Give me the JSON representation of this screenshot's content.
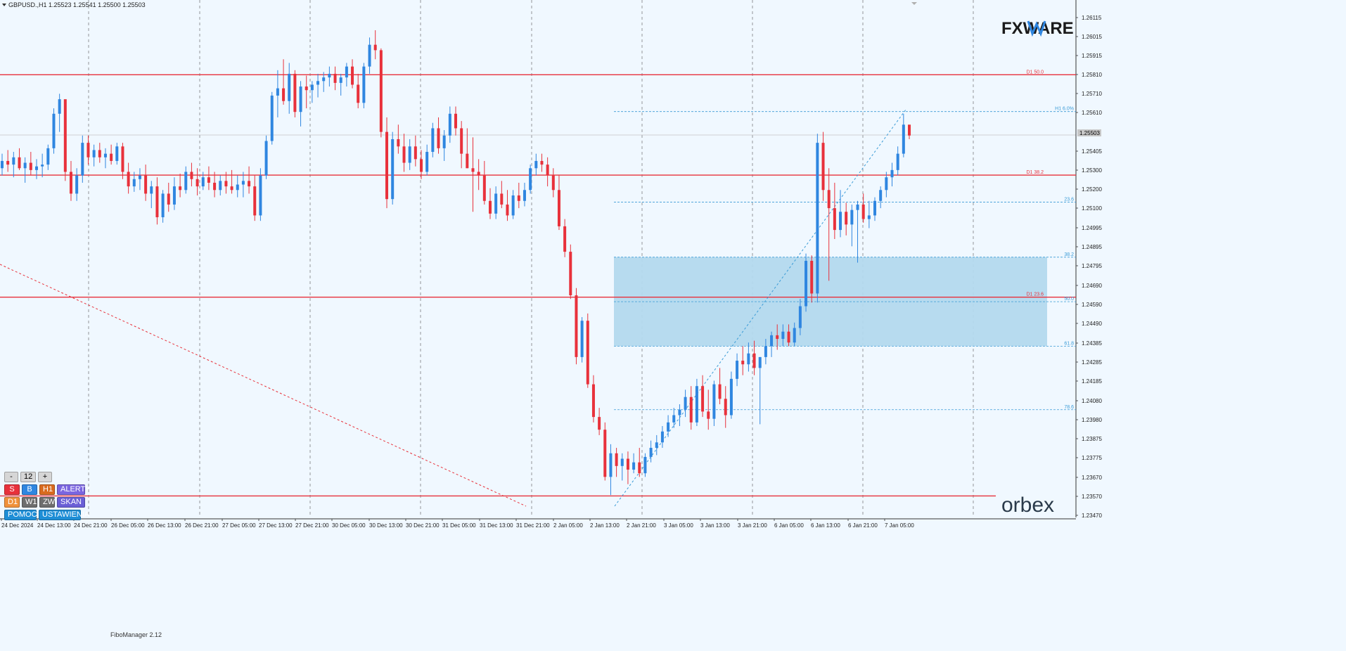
{
  "header": {
    "symbol_line": "GBPUSD.,H1  1.25523 1.25541 1.25500 1.25503"
  },
  "brand": {
    "logo_text": "FXWARE",
    "footer_logo": "orbex"
  },
  "indicator": {
    "name": "FiboManager 2.12"
  },
  "controls": {
    "minus": "-",
    "period": "12",
    "plus": "+",
    "row1": [
      "S",
      "B",
      "H1",
      "ALERTY"
    ],
    "row2": [
      "D1",
      "W1",
      "ZW",
      "SKAN"
    ],
    "row3": [
      "POMOC",
      "USTAWIENIA"
    ]
  },
  "current_price": "1.25503",
  "colors": {
    "bull": "#2f86e0",
    "bear": "#e8313b",
    "zone": "#b3d9ee",
    "level": "#e8313b",
    "fibo": "#3a9bd6"
  },
  "chart_data": {
    "type": "candlestick",
    "symbol": "GBPUSD.",
    "timeframe": "H1",
    "ylim": [
      1.2342,
      1.262
    ],
    "y_ticks": [
      "1.26115",
      "1.26015",
      "1.25915",
      "1.25810",
      "1.25710",
      "1.25610",
      "1.25405",
      "1.25300",
      "1.25200",
      "1.25100",
      "1.24995",
      "1.24895",
      "1.24795",
      "1.24690",
      "1.24590",
      "1.24490",
      "1.24385",
      "1.24285",
      "1.24185",
      "1.24080",
      "1.23980",
      "1.23875",
      "1.23775",
      "1.23670",
      "1.23570",
      "1.23470"
    ],
    "x_labels": [
      "24 Dec 2024",
      "24 Dec 13:00",
      "24 Dec 21:00",
      "26 Dec 05:00",
      "26 Dec 13:00",
      "26 Dec 21:00",
      "27 Dec 05:00",
      "27 Dec 13:00",
      "27 Dec 21:00",
      "30 Dec 05:00",
      "30 Dec 13:00",
      "30 Dec 21:00",
      "31 Dec 05:00",
      "31 Dec 13:00",
      "31 Dec 21:00",
      "2 Jan 05:00",
      "2 Jan 13:00",
      "2 Jan 21:00",
      "3 Jan 05:00",
      "3 Jan 13:00",
      "3 Jan 21:00",
      "6 Jan 05:00",
      "6 Jan 13:00",
      "6 Jan 21:00",
      "7 Jan 05:00"
    ],
    "horizontal_levels": [
      {
        "label": "D1 50.0",
        "price": 1.25835
      },
      {
        "label": "D1 38.2",
        "price": 1.25282
      },
      {
        "label": "D1 23.6",
        "price": 1.2461
      },
      {
        "label": "",
        "price": 1.23515
      }
    ],
    "fibo_levels": [
      {
        "label": "H1 6.0%",
        "price": 1.25632
      },
      {
        "label": "23.6",
        "price": 1.25133
      },
      {
        "label": "38.2",
        "price": 1.2483
      },
      {
        "label": "50.0",
        "price": 1.24585
      },
      {
        "label": "61.8",
        "price": 1.2434
      },
      {
        "label": "78.6",
        "price": 1.2399
      }
    ],
    "zone": {
      "price_top": 1.2483,
      "price_bottom": 1.2434
    },
    "candles": [
      [
        1.2532,
        1.254,
        1.2528,
        1.2536
      ],
      [
        1.2536,
        1.2542,
        1.253,
        1.2534
      ],
      [
        1.2534,
        1.2541,
        1.2527,
        1.2538
      ],
      [
        1.2538,
        1.2543,
        1.2531,
        1.2532
      ],
      [
        1.2532,
        1.2538,
        1.2524,
        1.2535
      ],
      [
        1.2535,
        1.2541,
        1.2528,
        1.2531
      ],
      [
        1.2531,
        1.2537,
        1.2526,
        1.2533
      ],
      [
        1.2533,
        1.254,
        1.2527,
        1.2534
      ],
      [
        1.2534,
        1.2545,
        1.2531,
        1.2543
      ],
      [
        1.2543,
        1.2565,
        1.254,
        1.2562
      ],
      [
        1.2562,
        1.2573,
        1.2552,
        1.257
      ],
      [
        1.257,
        1.2568,
        1.2525,
        1.253
      ],
      [
        1.253,
        1.2536,
        1.2514,
        1.2518
      ],
      [
        1.2518,
        1.2532,
        1.2514,
        1.2528
      ],
      [
        1.2528,
        1.255,
        1.2524,
        1.2546
      ],
      [
        1.2546,
        1.255,
        1.2534,
        1.2538
      ],
      [
        1.2538,
        1.2545,
        1.2533,
        1.2542
      ],
      [
        1.2542,
        1.2546,
        1.2535,
        1.2538
      ],
      [
        1.2538,
        1.2543,
        1.2532,
        1.254
      ],
      [
        1.254,
        1.2545,
        1.2534,
        1.2536
      ],
      [
        1.2536,
        1.2546,
        1.2534,
        1.2544
      ],
      [
        1.2544,
        1.2546,
        1.2526,
        1.253
      ],
      [
        1.253,
        1.2535,
        1.2518,
        1.2522
      ],
      [
        1.2522,
        1.253,
        1.2519,
        1.2526
      ],
      [
        1.2526,
        1.2532,
        1.252,
        1.2528
      ],
      [
        1.2528,
        1.2534,
        1.2514,
        1.2518
      ],
      [
        1.2518,
        1.2525,
        1.251,
        1.2522
      ],
      [
        1.2522,
        1.2527,
        1.2501,
        1.2505
      ],
      [
        1.2505,
        1.252,
        1.2502,
        1.2518
      ],
      [
        1.2518,
        1.2524,
        1.2508,
        1.2512
      ],
      [
        1.2512,
        1.2527,
        1.2509,
        1.2522
      ],
      [
        1.2522,
        1.2529,
        1.2516,
        1.252
      ],
      [
        1.252,
        1.2533,
        1.2518,
        1.253
      ],
      [
        1.253,
        1.2535,
        1.2522,
        1.2526
      ],
      [
        1.2526,
        1.2532,
        1.2517,
        1.2522
      ],
      [
        1.2522,
        1.253,
        1.252,
        1.2527
      ],
      [
        1.2527,
        1.2533,
        1.252,
        1.2524
      ],
      [
        1.2524,
        1.253,
        1.2516,
        1.252
      ],
      [
        1.252,
        1.2528,
        1.2517,
        1.2525
      ],
      [
        1.2525,
        1.253,
        1.2518,
        1.2522
      ],
      [
        1.2522,
        1.2531,
        1.2518,
        1.252
      ],
      [
        1.252,
        1.2528,
        1.2516,
        1.2523
      ],
      [
        1.2523,
        1.253,
        1.2516,
        1.2525
      ],
      [
        1.2525,
        1.2533,
        1.2518,
        1.2522
      ],
      [
        1.2522,
        1.2528,
        1.2503,
        1.2506
      ],
      [
        1.2506,
        1.2532,
        1.2503,
        1.2528
      ],
      [
        1.2528,
        1.255,
        1.2526,
        1.2547
      ],
      [
        1.2547,
        1.2574,
        1.2545,
        1.2572
      ],
      [
        1.2572,
        1.2586,
        1.256,
        1.2576
      ],
      [
        1.2576,
        1.2592,
        1.2567,
        1.2569
      ],
      [
        1.2569,
        1.259,
        1.2562,
        1.2584
      ],
      [
        1.2584,
        1.2586,
        1.256,
        1.2563
      ],
      [
        1.2563,
        1.258,
        1.2555,
        1.2577
      ],
      [
        1.2577,
        1.2583,
        1.2565,
        1.2575
      ],
      [
        1.2575,
        1.258,
        1.2568,
        1.2578
      ],
      [
        1.2578,
        1.2584,
        1.2571,
        1.258
      ],
      [
        1.258,
        1.2585,
        1.2574,
        1.2582
      ],
      [
        1.2582,
        1.2588,
        1.2577,
        1.2584
      ],
      [
        1.2584,
        1.2588,
        1.2575,
        1.2579
      ],
      [
        1.2579,
        1.2584,
        1.2572,
        1.2582
      ],
      [
        1.2582,
        1.259,
        1.2577,
        1.2588
      ],
      [
        1.2588,
        1.2592,
        1.2576,
        1.2578
      ],
      [
        1.2578,
        1.2584,
        1.2565,
        1.2568
      ],
      [
        1.2568,
        1.259,
        1.2565,
        1.2588
      ],
      [
        1.2588,
        1.2604,
        1.2584,
        1.26
      ],
      [
        1.26,
        1.2608,
        1.2592,
        1.2597
      ],
      [
        1.2597,
        1.2598,
        1.2549,
        1.2552
      ],
      [
        1.2552,
        1.256,
        1.251,
        1.2515
      ],
      [
        1.2515,
        1.2552,
        1.2512,
        1.2548
      ],
      [
        1.2548,
        1.2556,
        1.254,
        1.2544
      ],
      [
        1.2544,
        1.2551,
        1.253,
        1.2535
      ],
      [
        1.2535,
        1.2548,
        1.2531,
        1.2544
      ],
      [
        1.2544,
        1.255,
        1.2533,
        1.2537
      ],
      [
        1.2537,
        1.2542,
        1.2526,
        1.253
      ],
      [
        1.253,
        1.2545,
        1.2528,
        1.2541
      ],
      [
        1.2541,
        1.2557,
        1.2538,
        1.2554
      ],
      [
        1.2554,
        1.256,
        1.254,
        1.2543
      ],
      [
        1.2543,
        1.2553,
        1.2536,
        1.255
      ],
      [
        1.255,
        1.2566,
        1.2546,
        1.2562
      ],
      [
        1.2562,
        1.2566,
        1.255,
        1.2554
      ],
      [
        1.2554,
        1.2558,
        1.2532,
        1.254
      ],
      [
        1.254,
        1.2554,
        1.2532,
        1.2532
      ],
      [
        1.2532,
        1.2549,
        1.2508,
        1.253
      ],
      [
        1.253,
        1.2537,
        1.252,
        1.2528
      ],
      [
        1.2528,
        1.2536,
        1.2512,
        1.2514
      ],
      [
        1.2514,
        1.2521,
        1.2504,
        1.2507
      ],
      [
        1.2507,
        1.2522,
        1.2504,
        1.2518
      ],
      [
        1.2518,
        1.2525,
        1.251,
        1.2512
      ],
      [
        1.2512,
        1.252,
        1.2503,
        1.2506
      ],
      [
        1.2506,
        1.252,
        1.2504,
        1.2517
      ],
      [
        1.2517,
        1.2524,
        1.251,
        1.2514
      ],
      [
        1.2514,
        1.2524,
        1.2511,
        1.252
      ],
      [
        1.252,
        1.2534,
        1.2518,
        1.2532
      ],
      [
        1.2532,
        1.254,
        1.2528,
        1.2536
      ],
      [
        1.2536,
        1.254,
        1.253,
        1.2534
      ],
      [
        1.2534,
        1.2538,
        1.2522,
        1.2528
      ],
      [
        1.2528,
        1.2532,
        1.2516,
        1.252
      ],
      [
        1.252,
        1.2528,
        1.2498,
        1.25
      ],
      [
        1.25,
        1.2504,
        1.2483,
        1.2486
      ],
      [
        1.2486,
        1.249,
        1.246,
        1.2462
      ],
      [
        1.2462,
        1.2466,
        1.2424,
        1.2428
      ],
      [
        1.2428,
        1.245,
        1.2425,
        1.2448
      ],
      [
        1.2448,
        1.2452,
        1.2411,
        1.2413
      ],
      [
        1.2413,
        1.2418,
        1.2392,
        1.2395
      ],
      [
        1.2395,
        1.24,
        1.2385,
        1.2388
      ],
      [
        1.2388,
        1.2392,
        1.236,
        1.2362
      ],
      [
        1.2362,
        1.238,
        1.2352,
        1.2375
      ],
      [
        1.2375,
        1.2378,
        1.2362,
        1.2368
      ],
      [
        1.2368,
        1.2375,
        1.236,
        1.2372
      ],
      [
        1.2372,
        1.2376,
        1.2358,
        1.2366
      ],
      [
        1.2366,
        1.2375,
        1.2364,
        1.237
      ],
      [
        1.237,
        1.2378,
        1.2362,
        1.2364
      ],
      [
        1.2364,
        1.2375,
        1.2362,
        1.2373
      ],
      [
        1.2373,
        1.2382,
        1.237,
        1.2378
      ],
      [
        1.2378,
        1.2385,
        1.2374,
        1.2381
      ],
      [
        1.2381,
        1.239,
        1.2378,
        1.2387
      ],
      [
        1.2387,
        1.2396,
        1.2384,
        1.2392
      ],
      [
        1.2392,
        1.24,
        1.2389,
        1.2396
      ],
      [
        1.2396,
        1.2402,
        1.239,
        1.2399
      ],
      [
        1.2399,
        1.241,
        1.2395,
        1.2406
      ],
      [
        1.2406,
        1.2412,
        1.2388,
        1.2392
      ],
      [
        1.2392,
        1.2416,
        1.239,
        1.2412
      ],
      [
        1.2412,
        1.2418,
        1.2395,
        1.2398
      ],
      [
        1.2398,
        1.241,
        1.2388,
        1.2394
      ],
      [
        1.2394,
        1.2415,
        1.239,
        1.2413
      ],
      [
        1.2413,
        1.2422,
        1.2402,
        1.2405
      ],
      [
        1.2405,
        1.2412,
        1.2389,
        1.2396
      ],
      [
        1.2396,
        1.242,
        1.2394,
        1.2416
      ],
      [
        1.2416,
        1.243,
        1.2412,
        1.2426
      ],
      [
        1.2426,
        1.2434,
        1.2418,
        1.2424
      ],
      [
        1.2424,
        1.2436,
        1.242,
        1.243
      ],
      [
        1.243,
        1.2437,
        1.2418,
        1.2422
      ],
      [
        1.2422,
        1.2428,
        1.2391,
        1.2428
      ],
      [
        1.2428,
        1.2438,
        1.2424,
        1.2434
      ],
      [
        1.2434,
        1.2442,
        1.2428,
        1.244
      ],
      [
        1.244,
        1.2446,
        1.2432,
        1.2438
      ],
      [
        1.2438,
        1.2446,
        1.2434,
        1.2442
      ],
      [
        1.2442,
        1.2446,
        1.2434,
        1.2436
      ],
      [
        1.2436,
        1.2447,
        1.2434,
        1.2444
      ],
      [
        1.2444,
        1.246,
        1.244,
        1.2456
      ],
      [
        1.2456,
        1.2485,
        1.2453,
        1.2481
      ],
      [
        1.2481,
        1.2484,
        1.2458,
        1.2463
      ],
      [
        1.2463,
        1.2551,
        1.2458,
        1.2546
      ],
      [
        1.2546,
        1.2552,
        1.2514,
        1.252
      ],
      [
        1.252,
        1.2532,
        1.247,
        1.251
      ],
      [
        1.251,
        1.2524,
        1.2493,
        1.2498
      ],
      [
        1.2498,
        1.252,
        1.2494,
        1.2508
      ],
      [
        1.2508,
        1.2513,
        1.2495,
        1.2501
      ],
      [
        1.2501,
        1.2512,
        1.2489,
        1.2509
      ],
      [
        1.2509,
        1.2514,
        1.248,
        1.2512
      ],
      [
        1.2512,
        1.2518,
        1.2502,
        1.2504
      ],
      [
        1.2504,
        1.2514,
        1.2499,
        1.2506
      ],
      [
        1.2506,
        1.2516,
        1.2503,
        1.2514
      ],
      [
        1.2514,
        1.2522,
        1.251,
        1.252
      ],
      [
        1.252,
        1.253,
        1.2516,
        1.2527
      ],
      [
        1.2527,
        1.2535,
        1.2522,
        1.2531
      ],
      [
        1.2531,
        1.2544,
        1.2528,
        1.254
      ],
      [
        1.254,
        1.2562,
        1.2538,
        1.2556
      ],
      [
        1.2556,
        1.2554,
        1.2548,
        1.255
      ]
    ]
  }
}
